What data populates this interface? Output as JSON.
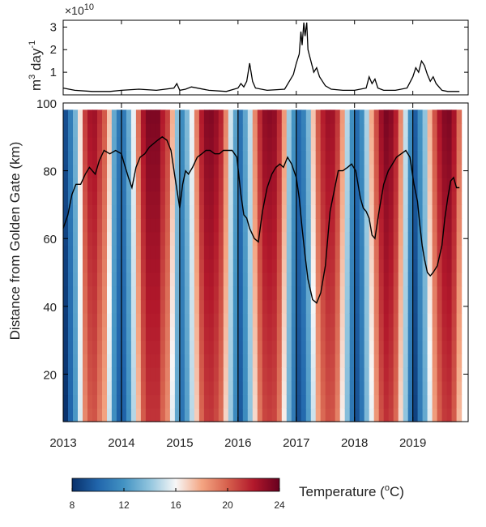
{
  "chart_data": [
    {
      "type": "line",
      "panel": "flow",
      "exponent_label": "×10",
      "exponent_power": "10",
      "ylabel": "m",
      "ylabel_sup1": "3",
      "ylabel_mid": " day",
      "ylabel_sup2": "-1",
      "ylim": [
        0,
        3.3
      ],
      "yticks": [
        "1",
        "2",
        "3"
      ],
      "ytick_values": [
        1,
        2,
        3
      ],
      "xlim": [
        2013.0,
        2019.95
      ],
      "grid": false,
      "x": [
        2013.0,
        2013.2,
        2013.5,
        2013.8,
        2014.0,
        2014.3,
        2014.6,
        2014.9,
        2014.95,
        2015.0,
        2015.1,
        2015.2,
        2015.5,
        2015.8,
        2016.0,
        2016.05,
        2016.1,
        2016.15,
        2016.2,
        2016.25,
        2016.3,
        2016.5,
        2016.8,
        2016.95,
        2017.0,
        2017.05,
        2017.08,
        2017.1,
        2017.13,
        2017.15,
        2017.18,
        2017.2,
        2017.25,
        2017.3,
        2017.35,
        2017.4,
        2017.5,
        2017.6,
        2017.8,
        2018.0,
        2018.2,
        2018.25,
        2018.3,
        2018.35,
        2018.4,
        2018.5,
        2018.7,
        2018.9,
        2019.0,
        2019.05,
        2019.1,
        2019.15,
        2019.2,
        2019.25,
        2019.3,
        2019.35,
        2019.4,
        2019.5,
        2019.6,
        2019.8
      ],
      "values": [
        0.3,
        0.2,
        0.15,
        0.15,
        0.2,
        0.25,
        0.2,
        0.3,
        0.5,
        0.2,
        0.25,
        0.35,
        0.2,
        0.15,
        0.3,
        0.5,
        0.35,
        0.6,
        1.4,
        0.6,
        0.3,
        0.2,
        0.25,
        0.9,
        1.4,
        1.8,
        2.8,
        2.2,
        3.2,
        2.6,
        3.2,
        2.0,
        1.5,
        1.0,
        1.2,
        0.8,
        0.4,
        0.25,
        0.2,
        0.2,
        0.3,
        0.8,
        0.5,
        0.7,
        0.3,
        0.2,
        0.2,
        0.3,
        0.8,
        1.2,
        1.0,
        1.5,
        1.3,
        0.9,
        0.6,
        0.8,
        0.5,
        0.2,
        0.15,
        0.15
      ],
      "color": "#000000"
    },
    {
      "type": "heatmap",
      "panel": "temperature",
      "ylabel": "Distance from Golden Gate  (km)",
      "ylim": [
        6,
        100
      ],
      "yticks": [
        "20",
        "40",
        "60",
        "80",
        "100"
      ],
      "ytick_values": [
        20,
        40,
        60,
        80,
        100
      ],
      "xlim": [
        2013.0,
        2019.95
      ],
      "xticks": [
        "2013",
        "2014",
        "2015",
        "2016",
        "2017",
        "2018",
        "2019"
      ],
      "xtick_values": [
        2013,
        2014,
        2015,
        2016,
        2017,
        2018,
        2019
      ],
      "grid": false,
      "colorbar": {
        "label": "Temperature (",
        "label_sup": "o",
        "label_end": "C)",
        "ticks": [
          "8",
          "12",
          "16",
          "20",
          "24"
        ],
        "tick_values": [
          8,
          12,
          16,
          20,
          24
        ],
        "range": [
          8,
          24
        ],
        "colors": [
          "#08306b",
          "#2166ac",
          "#4393c3",
          "#92c5de",
          "#f7f7f7",
          "#f4a582",
          "#d6604d",
          "#b2182b",
          "#67001f"
        ]
      },
      "column_x": [
        2013.0,
        2013.0833,
        2013.1667,
        2013.25,
        2013.3333,
        2013.4167,
        2013.5,
        2013.5833,
        2013.6667,
        2013.75,
        2013.8333,
        2013.9167,
        2014.0,
        2014.0833,
        2014.1667,
        2014.25,
        2014.3333,
        2014.4167,
        2014.5,
        2014.5833,
        2014.6667,
        2014.75,
        2014.8333,
        2014.9167,
        2015.0,
        2015.0833,
        2015.1667,
        2015.25,
        2015.3333,
        2015.4167,
        2015.5,
        2015.5833,
        2015.6667,
        2015.75,
        2015.8333,
        2015.9167,
        2016.0,
        2016.0833,
        2016.1667,
        2016.25,
        2016.3333,
        2016.4167,
        2016.5,
        2016.5833,
        2016.6667,
        2016.75,
        2016.8333,
        2016.9167,
        2017.0,
        2017.0833,
        2017.1667,
        2017.25,
        2017.3333,
        2017.4167,
        2017.5,
        2017.5833,
        2017.6667,
        2017.75,
        2017.8333,
        2017.9167,
        2018.0,
        2018.0833,
        2018.1667,
        2018.25,
        2018.3333,
        2018.4167,
        2018.5,
        2018.5833,
        2018.6667,
        2018.75,
        2018.8333,
        2018.9167,
        2019.0,
        2019.0833,
        2019.1667,
        2019.25,
        2019.3333,
        2019.4167,
        2019.5,
        2019.5833,
        2019.6667,
        2019.75
      ],
      "column_temperature": [
        8.6,
        10.5,
        12.7,
        16,
        19.9,
        21.2,
        21.4,
        20.3,
        19.1,
        16.2,
        12.3,
        10.3,
        10.4,
        12.5,
        15.2,
        18.5,
        21.2,
        22.3,
        22.3,
        22.3,
        20.9,
        19.8,
        16.7,
        13.3,
        11.2,
        13,
        15.3,
        18.1,
        20.9,
        22.1,
        22.2,
        21.7,
        20.7,
        17.9,
        14.7,
        12.1,
        10.1,
        12.2,
        14.5,
        17.8,
        20.4,
        21.8,
        22,
        21.8,
        20.4,
        17.3,
        13.7,
        11.5,
        9.7,
        10.7,
        12.9,
        16.2,
        19.2,
        20.8,
        21.5,
        21.4,
        20.1,
        17.3,
        14.2,
        11.3,
        9.8,
        11.2,
        14,
        16.8,
        19.5,
        21.5,
        22.4,
        22,
        20.8,
        17.8,
        14.5,
        11.3,
        9.2,
        11.4,
        13.4,
        16.6,
        19.3,
        21.1,
        22.1,
        22.3,
        21.2,
        18.6
      ],
      "column_bottom_km": [
        6,
        6,
        6,
        6,
        6,
        6,
        6,
        6,
        6,
        6,
        6,
        6,
        6,
        6,
        6,
        6,
        6,
        6,
        6,
        6,
        6,
        6,
        6,
        6,
        6,
        6,
        6,
        6,
        6,
        6,
        6,
        6,
        6,
        6,
        6,
        6,
        6,
        6,
        6,
        6,
        6,
        6,
        6,
        6,
        6,
        6,
        6,
        6,
        6,
        6,
        6,
        6,
        6,
        6,
        6,
        6,
        6,
        6,
        6,
        6,
        6,
        6,
        6,
        6,
        6,
        6,
        6,
        6,
        6,
        6,
        6,
        6,
        6,
        6,
        6,
        6,
        6,
        6,
        6,
        6,
        6,
        6
      ],
      "column_top_km": [
        98,
        98,
        98,
        98,
        98,
        98,
        98,
        98,
        98,
        98,
        98,
        98,
        98,
        98,
        98,
        98,
        98,
        98,
        98,
        98,
        98,
        98,
        98,
        98,
        98,
        98,
        98,
        98,
        98,
        98,
        98,
        98,
        98,
        98,
        98,
        98,
        98,
        98,
        98,
        98,
        98,
        98,
        98,
        98,
        98,
        98,
        98,
        98,
        98,
        98,
        98,
        98,
        98,
        98,
        98,
        98,
        98,
        98,
        98,
        98,
        98,
        98,
        98,
        98,
        98,
        98,
        98,
        98,
        98,
        98,
        98,
        98,
        98,
        98,
        98,
        98,
        98,
        98,
        98,
        98,
        98,
        98
      ],
      "salinity_line": {
        "color": "#000000",
        "x": [
          2013.0,
          2013.08,
          2013.15,
          2013.22,
          2013.3,
          2013.38,
          2013.45,
          2013.55,
          2013.62,
          2013.7,
          2013.8,
          2013.9,
          2014.0,
          2014.05,
          2014.12,
          2014.18,
          2014.25,
          2014.32,
          2014.4,
          2014.48,
          2014.55,
          2014.62,
          2014.7,
          2014.78,
          2014.85,
          2014.92,
          2015.0,
          2015.05,
          2015.1,
          2015.15,
          2015.22,
          2015.3,
          2015.38,
          2015.45,
          2015.52,
          2015.6,
          2015.68,
          2015.75,
          2015.82,
          2015.9,
          2015.98,
          2016.05,
          2016.1,
          2016.15,
          2016.2,
          2016.28,
          2016.35,
          2016.42,
          2016.5,
          2016.58,
          2016.65,
          2016.72,
          2016.78,
          2016.85,
          2016.92,
          2017.0,
          2017.05,
          2017.1,
          2017.15,
          2017.2,
          2017.28,
          2017.35,
          2017.42,
          2017.5,
          2017.58,
          2017.65,
          2017.72,
          2017.8,
          2017.88,
          2017.95,
          2018.02,
          2018.1,
          2018.15,
          2018.2,
          2018.25,
          2018.3,
          2018.35,
          2018.42,
          2018.5,
          2018.58,
          2018.65,
          2018.72,
          2018.8,
          2018.88,
          2018.95,
          2019.02,
          2019.08,
          2019.12,
          2019.16,
          2019.2,
          2019.25,
          2019.3,
          2019.35,
          2019.42,
          2019.5,
          2019.55,
          2019.6,
          2019.65,
          2019.7,
          2019.75,
          2019.8
        ],
        "values": [
          63,
          67,
          73,
          76,
          76,
          79,
          81,
          79,
          83,
          86,
          85,
          86,
          85,
          82,
          78,
          75,
          81,
          84,
          85,
          87,
          88,
          89,
          90,
          89,
          86,
          78,
          69,
          76,
          80,
          79,
          81,
          84,
          85,
          86,
          86,
          85,
          85,
          86,
          86,
          86,
          84,
          73,
          67,
          66,
          63,
          60,
          59,
          68,
          75,
          79,
          81,
          82,
          81,
          84,
          82,
          78,
          72,
          63,
          55,
          48,
          42,
          41,
          44,
          52,
          68,
          74,
          80,
          80,
          81,
          82,
          80,
          72,
          69,
          68,
          66,
          61,
          60,
          68,
          76,
          80,
          82,
          84,
          85,
          86,
          84,
          76,
          71,
          64,
          58,
          54,
          50,
          49,
          50,
          52,
          58,
          66,
          72,
          77,
          78,
          75,
          75
        ]
      },
      "vertical_lines_x": [
        2014.0,
        2015.0,
        2016.0,
        2017.0,
        2018.0,
        2019.0
      ],
      "vertical_lines_color": "#000000"
    }
  ]
}
